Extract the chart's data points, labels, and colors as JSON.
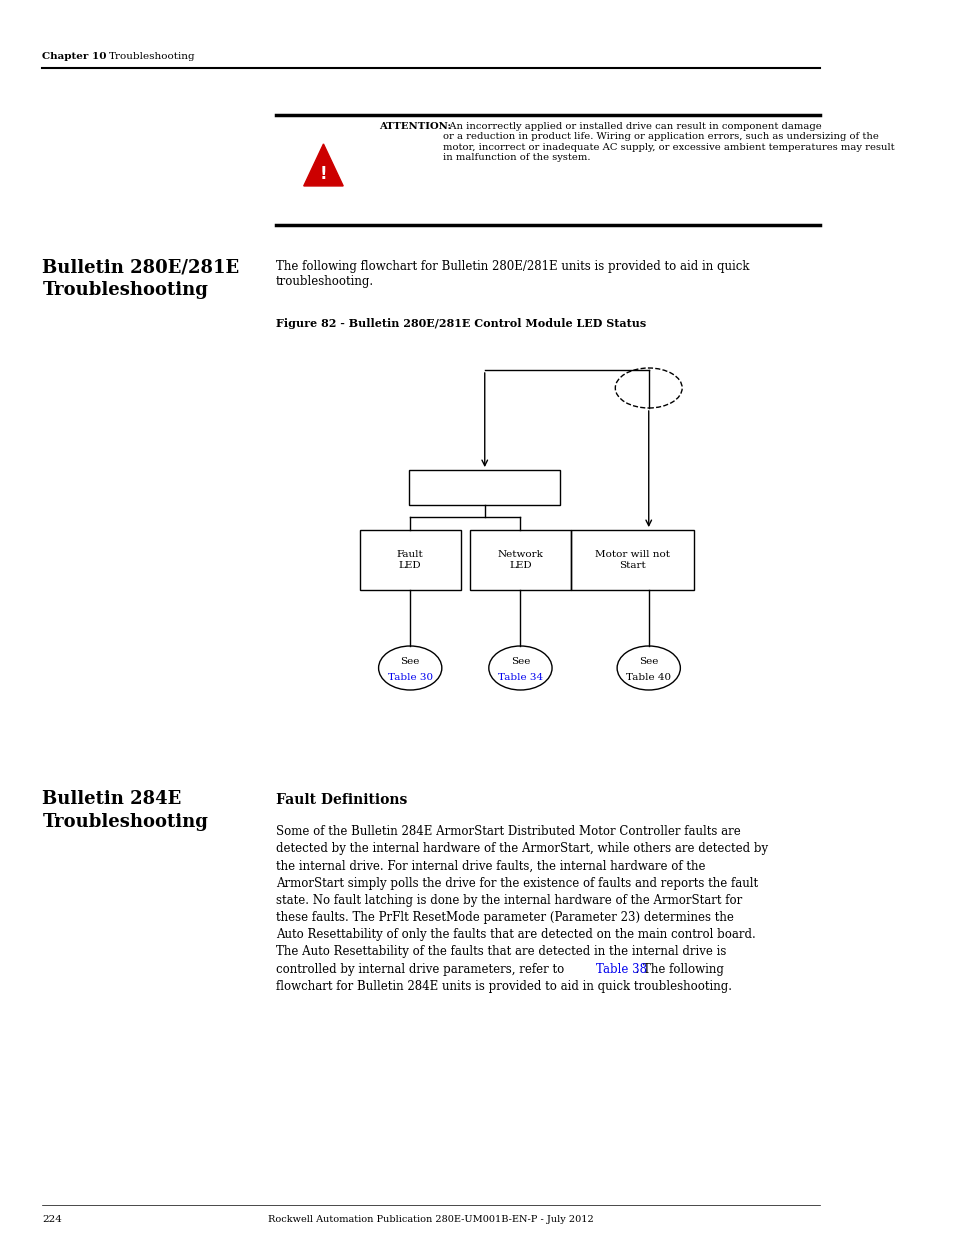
{
  "bg_color": "#ffffff",
  "page_width": 9.54,
  "page_height": 12.35,
  "header_chapter": "Chapter 10",
  "header_section": "Troubleshooting",
  "footer_page": "224",
  "footer_center": "Rockwell Automation Publication 280E-UM001B-EN-P - July 2012",
  "attention_bold": "ATTENTION:",
  "attention_text": "  An incorrectly applied or installed drive can result in component damage\nor a reduction in product life. Wiring or application errors, such as undersizing of the\nmotor, incorrect or inadequate AC supply, or excessive ambient temperatures may result\nin malfunction of the system.",
  "section1_title": "Bulletin 280E/281E\nTroubleshooting",
  "section1_intro": "The following flowchart for Bulletin 280E/281E units is provided to aid in quick\ntroubleshooting.",
  "figure_label": "Figure 82 - Bulletin 280E/281E Control Module LED Status",
  "section2_title": "Bulletin 284E\nTroubleshooting",
  "section2_subtitle": "Fault Definitions",
  "section2_body_pre": "Some of the Bulletin 284E ArmorStart Distributed Motor Controller faults are\ndetected by the internal hardware of the ArmorStart, while others are detected by\nthe internal drive. For internal drive faults, the internal hardware of the\nArmorStart simply polls the drive for the existence of faults and reports the fault\nstate. No fault latching is done by the internal hardware of the ArmorStart for\nthese faults. The PrFlt ResetMode parameter (Parameter 23) determines the\nAuto Resettability of only the faults that are detected on the main control board.\nThe Auto Resettability of the faults that are detected in the internal drive is\ncontrolled by internal drive parameters, refer to ",
  "section2_body_link": "Table 38",
  "section2_body_post": ". The following\nflowchart for Bulletin 284E units is provided to aid in quick troubleshooting.",
  "link_color": "#0000ee",
  "text_color": "#000000",
  "red_color": "#cc0000"
}
